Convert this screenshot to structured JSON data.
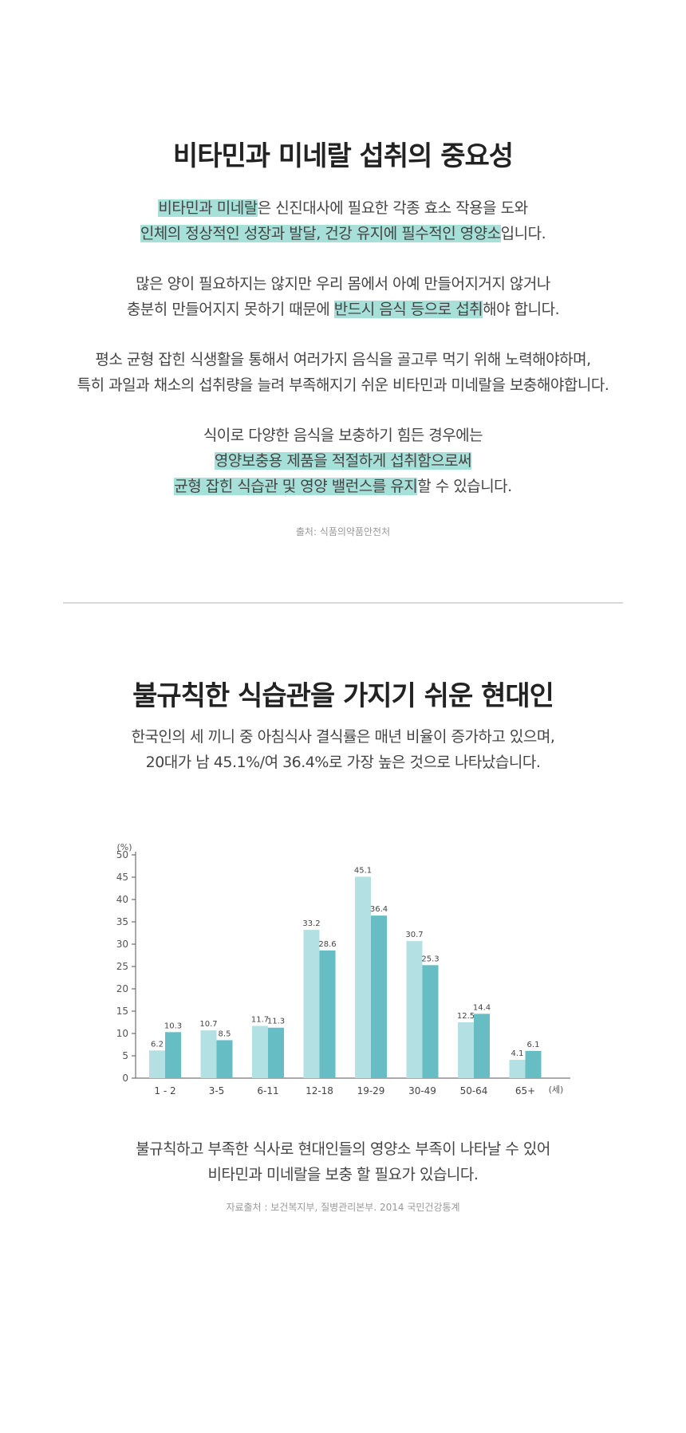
{
  "section1": {
    "title": "비타민과 미네랄 섭취의 중요성",
    "p1": {
      "l1_hl": "비타민과 미네랄",
      "l1_rest": "은 신진대사에 필요한 각종 효소 작용을 도와",
      "l2_hl": "인체의 정상적인 성장과 발달, 건강 유지에 필수적인 영양소",
      "l2_rest": "입니다."
    },
    "p2": {
      "l1": "많은 양이 필요하지는 않지만 우리 몸에서 아예 만들어지거지 않거나",
      "l2_pre": "충분히 만들어지지 못하기 때문에 ",
      "l2_hl": "반드시 음식 등으로 섭취",
      "l2_rest": "해야 합니다."
    },
    "p3": {
      "l1": "평소 균형 잡힌 식생활을 통해서 여러가지 음식을 골고루 먹기 위해 노력해야하며,",
      "l2": "특히 과일과 채소의 섭취량을 늘려 부족해지기 쉬운 비타민과 미네랄을 보충해야합니다."
    },
    "p4": {
      "l1": "식이로 다양한 음식을 보충하기 힘든 경우에는",
      "l2_hl": "영양보충용 제품을 적절하게 섭취함으로써",
      "l3_hl": "균형 잡힌 식습관 및 영양 밸런스를 유지",
      "l3_rest": "할 수 있습니다."
    },
    "source": "출처: 식품의약품안전처"
  },
  "section2": {
    "title": "불규칙한 식습관을 가지기 쉬운 현대인",
    "intro_l1": "한국인의 세 끼니 중 아침식사 결식률은 매년 비율이 증가하고 있으며,",
    "intro_l2": "20대가 남 45.1%/여 36.4%로 가장 높은 것으로 나타났습니다.",
    "outro_l1": "불규칙하고 부족한 식사로 현대인들의 영양소 부족이 나타날 수 있어",
    "outro_l2": "비타민과 미네랄을 보충 할 필요가 있습니다.",
    "source": "자료출처 : 보건복지부, 질병관리본부. 2014 국민건강통계"
  },
  "chart_data": {
    "type": "bar",
    "ylabel": "(%)",
    "xlabel": "(세)",
    "ylim": [
      0,
      50
    ],
    "yticks": [
      0,
      5,
      10,
      15,
      20,
      25,
      30,
      35,
      40,
      45,
      50
    ],
    "categories": [
      "1 - 2",
      "3-5",
      "6-11",
      "12-18",
      "19-29",
      "30-49",
      "50-64",
      "65+"
    ],
    "series": [
      {
        "values": [
          6.2,
          10.7,
          11.7,
          33.2,
          45.1,
          30.7,
          12.5,
          4.1
        ],
        "color": "#b2e0e3"
      },
      {
        "values": [
          10.3,
          8.5,
          11.3,
          28.6,
          36.4,
          25.3,
          14.4,
          6.1
        ],
        "color": "#66bdc4"
      }
    ],
    "grid": false,
    "legend": "none"
  },
  "colors": {
    "highlight": "#a6e0d9",
    "divider": "#d9d9d9"
  }
}
